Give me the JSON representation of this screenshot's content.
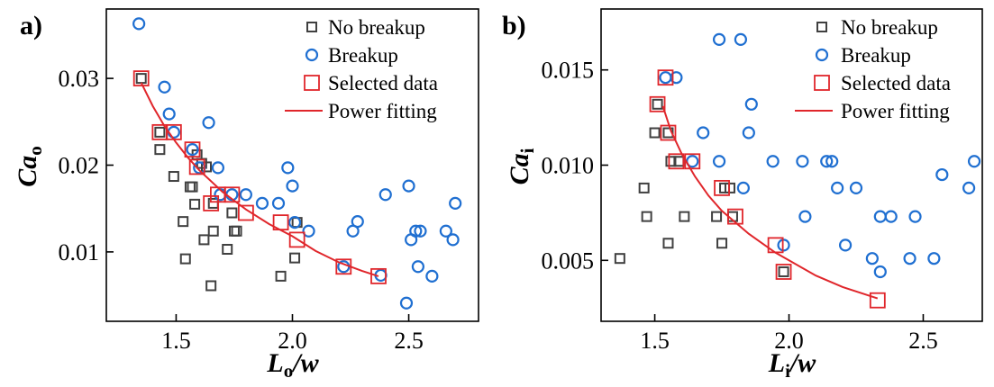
{
  "chart_data": [
    {
      "type": "scatter",
      "panel_label": "a)",
      "xlabel": {
        "main": "L",
        "sub": "o",
        "rest": "/w"
      },
      "ylabel": {
        "main": "Ca",
        "sub": "o"
      },
      "xlim": [
        1.2,
        2.8
      ],
      "ylim": [
        0.002,
        0.038
      ],
      "xticks": [
        1.5,
        2.0,
        2.5
      ],
      "xtick_labels": [
        "1.5",
        "2.0",
        "2.5"
      ],
      "yticks": [
        0.01,
        0.02,
        0.03
      ],
      "ytick_labels": [
        "0.01",
        "0.02",
        "0.03"
      ],
      "legend_position": "top-right",
      "legend": [
        "No breakup",
        "Breakup",
        "Selected data",
        "Power fitting"
      ],
      "series": [
        {
          "name": "No breakup",
          "marker": "square",
          "color": "#404040",
          "x": [
            1.35,
            1.43,
            1.43,
            1.49,
            1.53,
            1.54,
            1.56,
            1.57,
            1.58,
            1.59,
            1.61,
            1.62,
            1.63,
            1.65,
            1.66,
            1.66,
            1.72,
            1.74,
            1.75,
            1.76,
            1.95,
            2.01,
            2.02
          ],
          "y": [
            0.03,
            0.0238,
            0.0218,
            0.0187,
            0.0135,
            0.0092,
            0.0175,
            0.0175,
            0.0155,
            0.0212,
            0.0202,
            0.0114,
            0.0198,
            0.0061,
            0.0124,
            0.0156,
            0.0103,
            0.0145,
            0.0124,
            0.0124,
            0.0072,
            0.0093,
            0.0134
          ]
        },
        {
          "name": "Breakup",
          "marker": "circle",
          "color": "#1f6fd1",
          "x": [
            1.34,
            1.45,
            1.47,
            1.49,
            1.57,
            1.6,
            1.64,
            1.68,
            1.69,
            1.74,
            1.8,
            1.87,
            1.94,
            1.98,
            2.0,
            2.01,
            2.07,
            2.22,
            2.26,
            2.28,
            2.38,
            2.4,
            2.49,
            2.5,
            2.51,
            2.53,
            2.54,
            2.55,
            2.6,
            2.66,
            2.69,
            2.7
          ],
          "y": [
            0.0363,
            0.029,
            0.0259,
            0.0238,
            0.0218,
            0.0197,
            0.0249,
            0.0197,
            0.0166,
            0.0166,
            0.0166,
            0.0156,
            0.0156,
            0.0197,
            0.0176,
            0.0134,
            0.0124,
            0.0083,
            0.0124,
            0.0135,
            0.0073,
            0.0166,
            0.0041,
            0.0176,
            0.0114,
            0.0124,
            0.0083,
            0.0124,
            0.0072,
            0.0124,
            0.0114,
            0.0156
          ]
        },
        {
          "name": "Selected data",
          "marker": "open-square",
          "color": "#e0262b",
          "x": [
            1.35,
            1.43,
            1.49,
            1.57,
            1.59,
            1.65,
            1.68,
            1.74,
            1.8,
            1.95,
            2.02,
            2.22,
            2.37
          ],
          "y": [
            0.03,
            0.0238,
            0.0238,
            0.0218,
            0.0198,
            0.0156,
            0.0166,
            0.0166,
            0.0145,
            0.0134,
            0.0114,
            0.0083,
            0.0072
          ]
        },
        {
          "name": "Power fitting",
          "marker": "line",
          "color": "#e0262b",
          "x": [
            1.35,
            1.4,
            1.45,
            1.5,
            1.55,
            1.6,
            1.7,
            1.8,
            1.9,
            2.0,
            2.1,
            2.2,
            2.3,
            2.37
          ],
          "y": [
            0.0295,
            0.0268,
            0.0245,
            0.0226,
            0.0209,
            0.0194,
            0.0169,
            0.0149,
            0.0132,
            0.0118,
            0.0101,
            0.0088,
            0.0078,
            0.0072
          ]
        }
      ]
    },
    {
      "type": "scatter",
      "panel_label": "b)",
      "xlabel": {
        "main": "L",
        "sub": "i",
        "rest": "/w"
      },
      "ylabel": {
        "main": "Ca",
        "sub": "i"
      },
      "xlim": [
        1.3,
        2.72
      ],
      "ylim": [
        0.0018,
        0.0182
      ],
      "xticks": [
        1.5,
        2.0,
        2.5
      ],
      "xtick_labels": [
        "1.5",
        "2.0",
        "2.5"
      ],
      "yticks": [
        0.005,
        0.01,
        0.015
      ],
      "ytick_labels": [
        "0.005",
        "0.010",
        "0.015"
      ],
      "legend_position": "top-right",
      "legend": [
        "No breakup",
        "Breakup",
        "Selected data",
        "Power fitting"
      ],
      "series": [
        {
          "name": "No breakup",
          "marker": "square",
          "color": "#404040",
          "x": [
            1.37,
            1.46,
            1.47,
            1.5,
            1.51,
            1.55,
            1.55,
            1.56,
            1.59,
            1.61,
            1.73,
            1.75,
            1.76,
            1.78,
            1.79,
            1.98
          ],
          "y": [
            0.0051,
            0.0088,
            0.0073,
            0.0117,
            0.0132,
            0.0117,
            0.0059,
            0.0102,
            0.0102,
            0.0073,
            0.0073,
            0.0059,
            0.0088,
            0.0088,
            0.0073,
            0.0044
          ]
        },
        {
          "name": "Breakup",
          "marker": "circle",
          "color": "#1f6fd1",
          "x": [
            1.54,
            1.58,
            1.64,
            1.68,
            1.74,
            1.74,
            1.82,
            1.83,
            1.85,
            1.86,
            1.94,
            1.98,
            2.05,
            2.06,
            2.14,
            2.16,
            2.18,
            2.21,
            2.25,
            2.31,
            2.34,
            2.34,
            2.38,
            2.45,
            2.47,
            2.54,
            2.57,
            2.67,
            2.69
          ],
          "y": [
            0.0146,
            0.0146,
            0.0102,
            0.0117,
            0.0166,
            0.0102,
            0.0166,
            0.0088,
            0.0117,
            0.0132,
            0.0102,
            0.0058,
            0.0102,
            0.0073,
            0.0102,
            0.0102,
            0.0088,
            0.0058,
            0.0088,
            0.0051,
            0.0044,
            0.0073,
            0.0073,
            0.0051,
            0.0073,
            0.0051,
            0.0095,
            0.0088,
            0.0102
          ]
        },
        {
          "name": "Selected data",
          "marker": "open-square",
          "color": "#e0262b",
          "x": [
            1.51,
            1.54,
            1.55,
            1.58,
            1.64,
            1.75,
            1.8,
            1.95,
            1.98,
            2.33
          ],
          "y": [
            0.0132,
            0.0146,
            0.0117,
            0.0102,
            0.0102,
            0.0088,
            0.0073,
            0.0058,
            0.0044,
            0.0029
          ]
        },
        {
          "name": "Power fitting",
          "marker": "line",
          "color": "#e0262b",
          "x": [
            1.53,
            1.56,
            1.6,
            1.65,
            1.7,
            1.75,
            1.8,
            1.85,
            1.9,
            1.95,
            2.0,
            2.05,
            2.1,
            2.2,
            2.33
          ],
          "y": [
            0.0131,
            0.0118,
            0.0106,
            0.0094,
            0.0084,
            0.0076,
            0.007,
            0.0064,
            0.0059,
            0.0054,
            0.005,
            0.0046,
            0.0042,
            0.0036,
            0.003
          ]
        }
      ]
    }
  ]
}
